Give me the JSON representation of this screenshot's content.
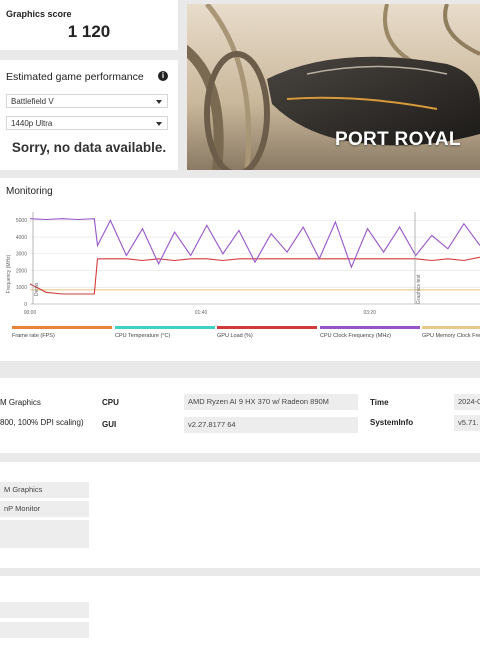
{
  "score": {
    "label": "Graphics score",
    "value": "1 120"
  },
  "performance": {
    "title": "Estimated game performance",
    "game": "Battlefield V",
    "preset": "1440p Ultra",
    "message": "Sorry, no data available."
  },
  "hero": {
    "title": "PORT ROYAL"
  },
  "monitoring": {
    "title": "Monitoring",
    "y_ticks": [
      "5000",
      "4000",
      "3000",
      "2000",
      "1000",
      "0"
    ],
    "x_ticks": [
      "00:00",
      "01:40",
      "03:20"
    ],
    "y_axis_label": "Frequency (MHz)",
    "markers": [
      "Demo",
      "Graphics test"
    ],
    "legend": [
      {
        "label": "Frame rate (FPS)",
        "color": "#e8843a"
      },
      {
        "label": "CPU Temperature (°C)",
        "color": "#3fd1c4"
      },
      {
        "label": "GPU Load (%)",
        "color": "#d23a3a"
      },
      {
        "label": "CPU Clock Frequency (MHz)",
        "color": "#9955c8"
      },
      {
        "label": "GPU Memory Clock Frequency",
        "color": "#e8c98a"
      }
    ]
  },
  "chart_data": {
    "type": "line",
    "x": [
      0,
      10,
      20,
      30,
      40,
      42,
      50,
      60,
      70,
      80,
      90,
      100,
      110,
      120,
      130,
      140,
      150,
      160,
      170,
      180,
      190,
      200,
      210,
      220,
      230,
      240,
      250,
      260,
      270,
      280
    ],
    "xlabel": "",
    "ylabel": "Frequency (MHz)",
    "ylim": [
      0,
      5500
    ],
    "series": [
      {
        "name": "CPU Clock Frequency (MHz)",
        "values": [
          5100,
          5050,
          5100,
          5050,
          5100,
          3500,
          5000,
          2900,
          4500,
          2400,
          4300,
          2900,
          4700,
          3000,
          4400,
          2500,
          4200,
          3100,
          4600,
          2700,
          4900,
          2200,
          4500,
          3100,
          4600,
          2900,
          4100,
          3300,
          4800,
          3500
        ]
      },
      {
        "name": "GPU Load (%)",
        "values": [
          1200,
          700,
          600,
          600,
          600,
          2700,
          2700,
          2700,
          2600,
          2700,
          2600,
          2700,
          2700,
          2600,
          2700,
          2700,
          2700,
          2700,
          2700,
          2700,
          2700,
          2700,
          2700,
          2700,
          2700,
          2700,
          2600,
          2700,
          2600,
          2800
        ]
      },
      {
        "name": "GPU Memory Clock Frequency",
        "values": [
          850,
          850,
          850,
          850,
          850,
          850,
          850,
          850,
          850,
          850,
          850,
          850,
          850,
          850,
          850,
          850,
          850,
          850,
          850,
          850,
          850,
          850,
          850,
          850,
          850,
          850,
          850,
          850,
          850,
          850
        ]
      }
    ]
  },
  "sysinfo": {
    "gpu_partial": "M Graphics",
    "display_partial": "800, 100% DPI scaling)",
    "cpu_label": "CPU",
    "cpu_value": "AMD Ryzen AI 9 HX 370 w/ Radeon 890M",
    "gui_label": "GUI",
    "gui_value": "v2.27.8177 64",
    "time_label": "Time",
    "time_value": "2024-0",
    "systeminfo_label": "SystemInfo",
    "systeminfo_value": "v5.71."
  },
  "details": {
    "gpu_partial": "M Graphics",
    "monitor_partial": "nP Monitor",
    "empty": ""
  }
}
